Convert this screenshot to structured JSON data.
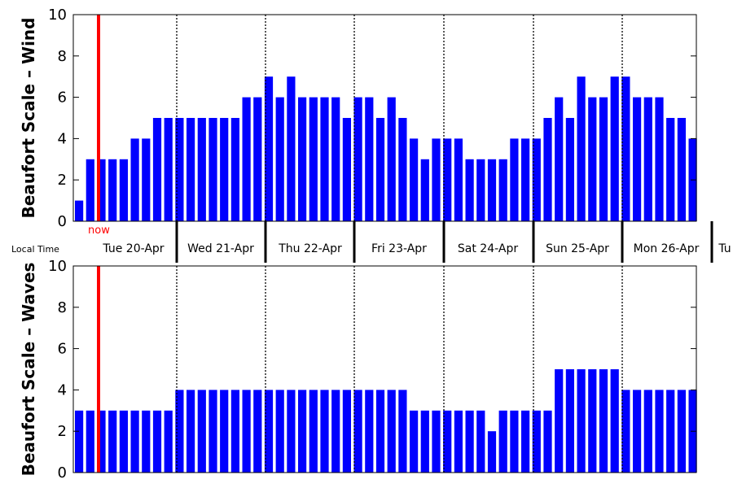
{
  "chart_data": [
    {
      "type": "bar",
      "ylabel": "Beaufort Scale – Wind",
      "ylim": [
        0,
        10
      ],
      "yticks": [
        "0",
        "2",
        "4",
        "6",
        "8",
        "10"
      ],
      "values": [
        1,
        3,
        3,
        3,
        3,
        4,
        4,
        5,
        5,
        5,
        5,
        5,
        5,
        5,
        5,
        6,
        6,
        7,
        6,
        7,
        6,
        6,
        6,
        6,
        5,
        6,
        6,
        5,
        6,
        5,
        4,
        3,
        4,
        4,
        4,
        3,
        3,
        3,
        3,
        4,
        4,
        4,
        5,
        6,
        5,
        7,
        6,
        6,
        7,
        7,
        6,
        6,
        6,
        5,
        5,
        4
      ],
      "bar_color": "#0000ff",
      "now_label": "now",
      "now_color": "#ff0000"
    },
    {
      "type": "bar",
      "ylabel": "Beaufort Scale – Waves",
      "ylim": [
        0,
        10
      ],
      "yticks": [
        "0",
        "2",
        "4",
        "6",
        "8",
        "10"
      ],
      "values": [
        3,
        3,
        3,
        3,
        3,
        3,
        3,
        3,
        3,
        4,
        4,
        4,
        4,
        4,
        4,
        4,
        4,
        4,
        4,
        4,
        4,
        4,
        4,
        4,
        4,
        4,
        4,
        4,
        4,
        4,
        3,
        3,
        3,
        3,
        3,
        3,
        3,
        2,
        3,
        3,
        3,
        3,
        3,
        5,
        5,
        5,
        5,
        5,
        5,
        4,
        4,
        4,
        4,
        4,
        4,
        4
      ],
      "bar_color": "#0000ff"
    }
  ],
  "time_axis": {
    "label": "Local Time",
    "days": [
      "Tue 20-Apr",
      "Wed 21-Apr",
      "Thu 22-Apr",
      "Fri 23-Apr",
      "Sat 24-Apr",
      "Sun 25-Apr",
      "Mon 26-Apr",
      "Tu"
    ]
  }
}
